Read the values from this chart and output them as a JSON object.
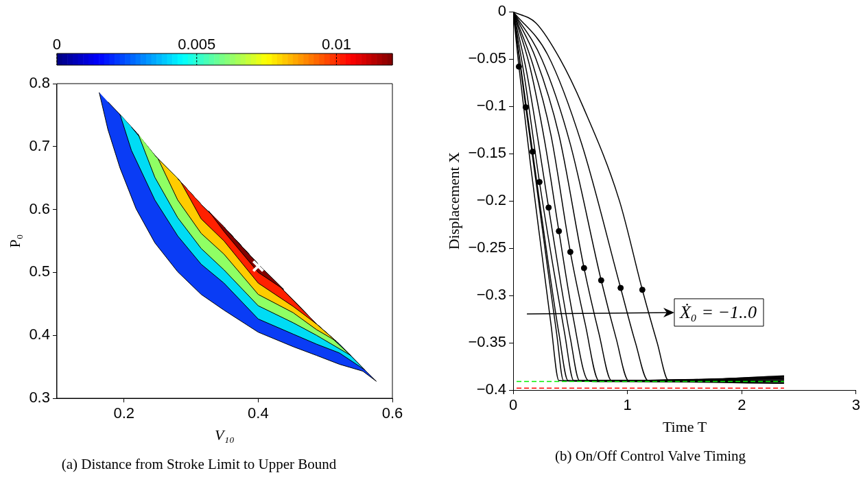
{
  "chart_data": [
    {
      "type": "area",
      "title": "(a) Distance from Stroke Limit to Upper Bound",
      "xlabel": "V₁₀",
      "ylabel": "P₀",
      "xlim": [
        0.1,
        0.6
      ],
      "ylim": [
        0.3,
        0.8
      ],
      "xticks": [
        0.2,
        0.4,
        0.6
      ],
      "yticks": [
        0.3,
        0.4,
        0.5,
        0.6,
        0.7,
        0.8
      ],
      "clim": [
        0,
        0.012
      ],
      "cticks": [
        0,
        0.005,
        0.01
      ],
      "series": [
        {
          "color": "#0a3cf5",
          "x": [
            0.163,
            0.176,
            0.194,
            0.218,
            0.246,
            0.28,
            0.315,
            0.349,
            0.4,
            0.452,
            0.487,
            0.521,
            0.556,
            0.576,
            0.556,
            0.521,
            0.487,
            0.452,
            0.4,
            0.349,
            0.315,
            0.28,
            0.246,
            0.218,
            0.194,
            0.176
          ],
          "values": [
            0.786,
            0.727,
            0.666,
            0.601,
            0.547,
            0.501,
            0.465,
            0.44,
            0.405,
            0.382,
            0.368,
            0.354,
            0.343,
            0.327,
            0.348,
            0.386,
            0.418,
            0.456,
            0.513,
            0.572,
            0.608,
            0.649,
            0.686,
            0.723,
            0.751,
            0.771
          ]
        },
        {
          "color": "#00dcf5",
          "x": [
            0.194,
            0.211,
            0.246,
            0.28,
            0.315,
            0.349,
            0.4,
            0.452,
            0.487,
            0.521,
            0.559,
            0.521,
            0.487,
            0.452,
            0.4,
            0.349,
            0.315,
            0.28,
            0.246,
            0.211
          ],
          "values": [
            0.751,
            0.694,
            0.615,
            0.558,
            0.513,
            0.483,
            0.426,
            0.402,
            0.386,
            0.372,
            0.345,
            0.386,
            0.418,
            0.456,
            0.513,
            0.572,
            0.608,
            0.649,
            0.686,
            0.731
          ]
        },
        {
          "color": "#8fff64",
          "x": [
            0.221,
            0.246,
            0.28,
            0.315,
            0.349,
            0.4,
            0.452,
            0.487,
            0.538,
            0.487,
            0.452,
            0.4,
            0.349,
            0.315,
            0.28,
            0.246
          ],
          "values": [
            0.72,
            0.651,
            0.587,
            0.538,
            0.504,
            0.447,
            0.42,
            0.4,
            0.368,
            0.418,
            0.456,
            0.513,
            0.572,
            0.608,
            0.649,
            0.686
          ]
        },
        {
          "color": "#ffcc00",
          "x": [
            0.251,
            0.28,
            0.315,
            0.349,
            0.4,
            0.452,
            0.487,
            0.516,
            0.487,
            0.452,
            0.4,
            0.349,
            0.315,
            0.28
          ],
          "values": [
            0.68,
            0.615,
            0.562,
            0.529,
            0.465,
            0.436,
            0.409,
            0.391,
            0.418,
            0.456,
            0.513,
            0.572,
            0.608,
            0.649
          ]
        },
        {
          "color": "#ff2000",
          "x": [
            0.285,
            0.315,
            0.349,
            0.4,
            0.452,
            0.487,
            0.452,
            0.4,
            0.349,
            0.315
          ],
          "values": [
            0.643,
            0.585,
            0.55,
            0.483,
            0.446,
            0.418,
            0.456,
            0.513,
            0.572,
            0.608
          ]
        },
        {
          "color": "#820000",
          "x": [
            0.326,
            0.349,
            0.4,
            0.438,
            0.4,
            0.349
          ],
          "values": [
            0.598,
            0.565,
            0.5,
            0.473,
            0.513,
            0.572
          ]
        },
        {
          "type": "scatter",
          "color": "#ffffff",
          "marker": "cross",
          "x": [
            0.4
          ],
          "values": [
            0.51
          ]
        }
      ]
    },
    {
      "type": "line",
      "title": "(b) On/Off Control Valve Timing",
      "xlabel": "Time T",
      "ylabel": "Displacement X",
      "xlim": [
        0,
        3
      ],
      "ylim": [
        -0.4,
        0
      ],
      "xticks": [
        0,
        1,
        2,
        3
      ],
      "yticks": [
        0,
        {
          "value": -0.05,
          "label": "−0.05"
        },
        {
          "value": -0.1,
          "label": "−0.1"
        },
        {
          "value": -0.15,
          "label": "−0.15"
        },
        {
          "value": -0.2,
          "label": "−0.2"
        },
        {
          "value": -0.25,
          "label": "−0.25"
        },
        {
          "value": -0.3,
          "label": "−0.3"
        },
        {
          "value": -0.35,
          "label": "−0.35"
        },
        {
          "value": -0.4,
          "label": "−0.4"
        }
      ],
      "marker": "none",
      "annotations": [
        "Ẋ₀ = −1..0"
      ],
      "series": [
        {
          "color": "#000000",
          "x": [
            0,
            0.05,
            0.15,
            0.25,
            0.33,
            0.4,
            1.0,
            2.37
          ],
          "values": [
            0,
            -0.058,
            -0.16,
            -0.255,
            -0.33,
            -0.39,
            -0.391,
            -0.393
          ]
        },
        {
          "color": "#000000",
          "x": [
            0,
            0.11,
            0.2,
            0.3,
            0.38,
            0.44,
            1.0,
            2.37
          ],
          "values": [
            0,
            -0.101,
            -0.18,
            -0.27,
            -0.34,
            -0.39,
            -0.391,
            -0.392
          ]
        },
        {
          "color": "#000000",
          "x": [
            0,
            0.08,
            0.17,
            0.3,
            0.4,
            0.48,
            2.37
          ],
          "values": [
            0,
            -0.07,
            -0.148,
            -0.26,
            -0.34,
            -0.39,
            -0.391
          ]
        },
        {
          "color": "#000000",
          "x": [
            0,
            0.1,
            0.23,
            0.35,
            0.45,
            0.53,
            2.37
          ],
          "values": [
            0,
            -0.07,
            -0.18,
            -0.27,
            -0.34,
            -0.39,
            -0.39
          ]
        },
        {
          "color": "#000000",
          "x": [
            0,
            0.12,
            0.31,
            0.42,
            0.5,
            0.58,
            2.37
          ],
          "values": [
            0,
            -0.065,
            -0.207,
            -0.29,
            -0.345,
            -0.39,
            -0.389
          ]
        },
        {
          "color": "#000000",
          "x": [
            0,
            0.15,
            0.28,
            0.4,
            0.52,
            0.66,
            2.37
          ],
          "values": [
            0,
            -0.06,
            -0.14,
            -0.232,
            -0.32,
            -0.39,
            -0.388
          ]
        },
        {
          "color": "#000000",
          "x": [
            0,
            0.17,
            0.33,
            0.5,
            0.63,
            0.75,
            2.37
          ],
          "values": [
            0,
            -0.055,
            -0.13,
            -0.254,
            -0.33,
            -0.39,
            -0.388
          ]
        },
        {
          "color": "#000000",
          "x": [
            0,
            0.2,
            0.4,
            0.62,
            0.75,
            0.86,
            2.37
          ],
          "values": [
            0,
            -0.05,
            -0.13,
            -0.271,
            -0.34,
            -0.39,
            -0.387
          ]
        },
        {
          "color": "#000000",
          "x": [
            0,
            0.25,
            0.5,
            0.77,
            0.9,
            1.01,
            2.37
          ],
          "values": [
            0,
            -0.05,
            -0.14,
            -0.284,
            -0.345,
            -0.39,
            -0.386
          ]
        },
        {
          "color": "#000000",
          "x": [
            0,
            0.3,
            0.6,
            0.94,
            1.07,
            1.18,
            2.37
          ],
          "values": [
            0,
            -0.045,
            -0.14,
            -0.292,
            -0.35,
            -0.39,
            -0.386
          ]
        },
        {
          "color": "#000000",
          "x": [
            0,
            0.2,
            0.41,
            0.61,
            0.93,
            1.13,
            1.26,
            1.36,
            2.37
          ],
          "values": [
            0,
            -0.012,
            -0.05,
            -0.1,
            -0.2,
            -0.294,
            -0.35,
            -0.39,
            -0.385
          ]
        },
        {
          "type": "scatter",
          "color": "#000000",
          "marker": "circle",
          "x": [
            0.05,
            0.11,
            0.17,
            0.23,
            0.31,
            0.4,
            0.5,
            0.62,
            0.77,
            0.94,
            1.13
          ],
          "values": [
            -0.058,
            -0.101,
            -0.148,
            -0.18,
            -0.207,
            -0.232,
            -0.254,
            -0.271,
            -0.284,
            -0.292,
            -0.294
          ]
        },
        {
          "color": "#00ee00",
          "line_style": "dashed",
          "x": [
            0.03,
            2.37
          ],
          "values": [
            -0.391,
            -0.391
          ]
        },
        {
          "color": "#ff0000",
          "line_style": "dashed",
          "x": [
            0.03,
            2.37
          ],
          "values": [
            -0.398,
            -0.398
          ]
        }
      ]
    }
  ]
}
